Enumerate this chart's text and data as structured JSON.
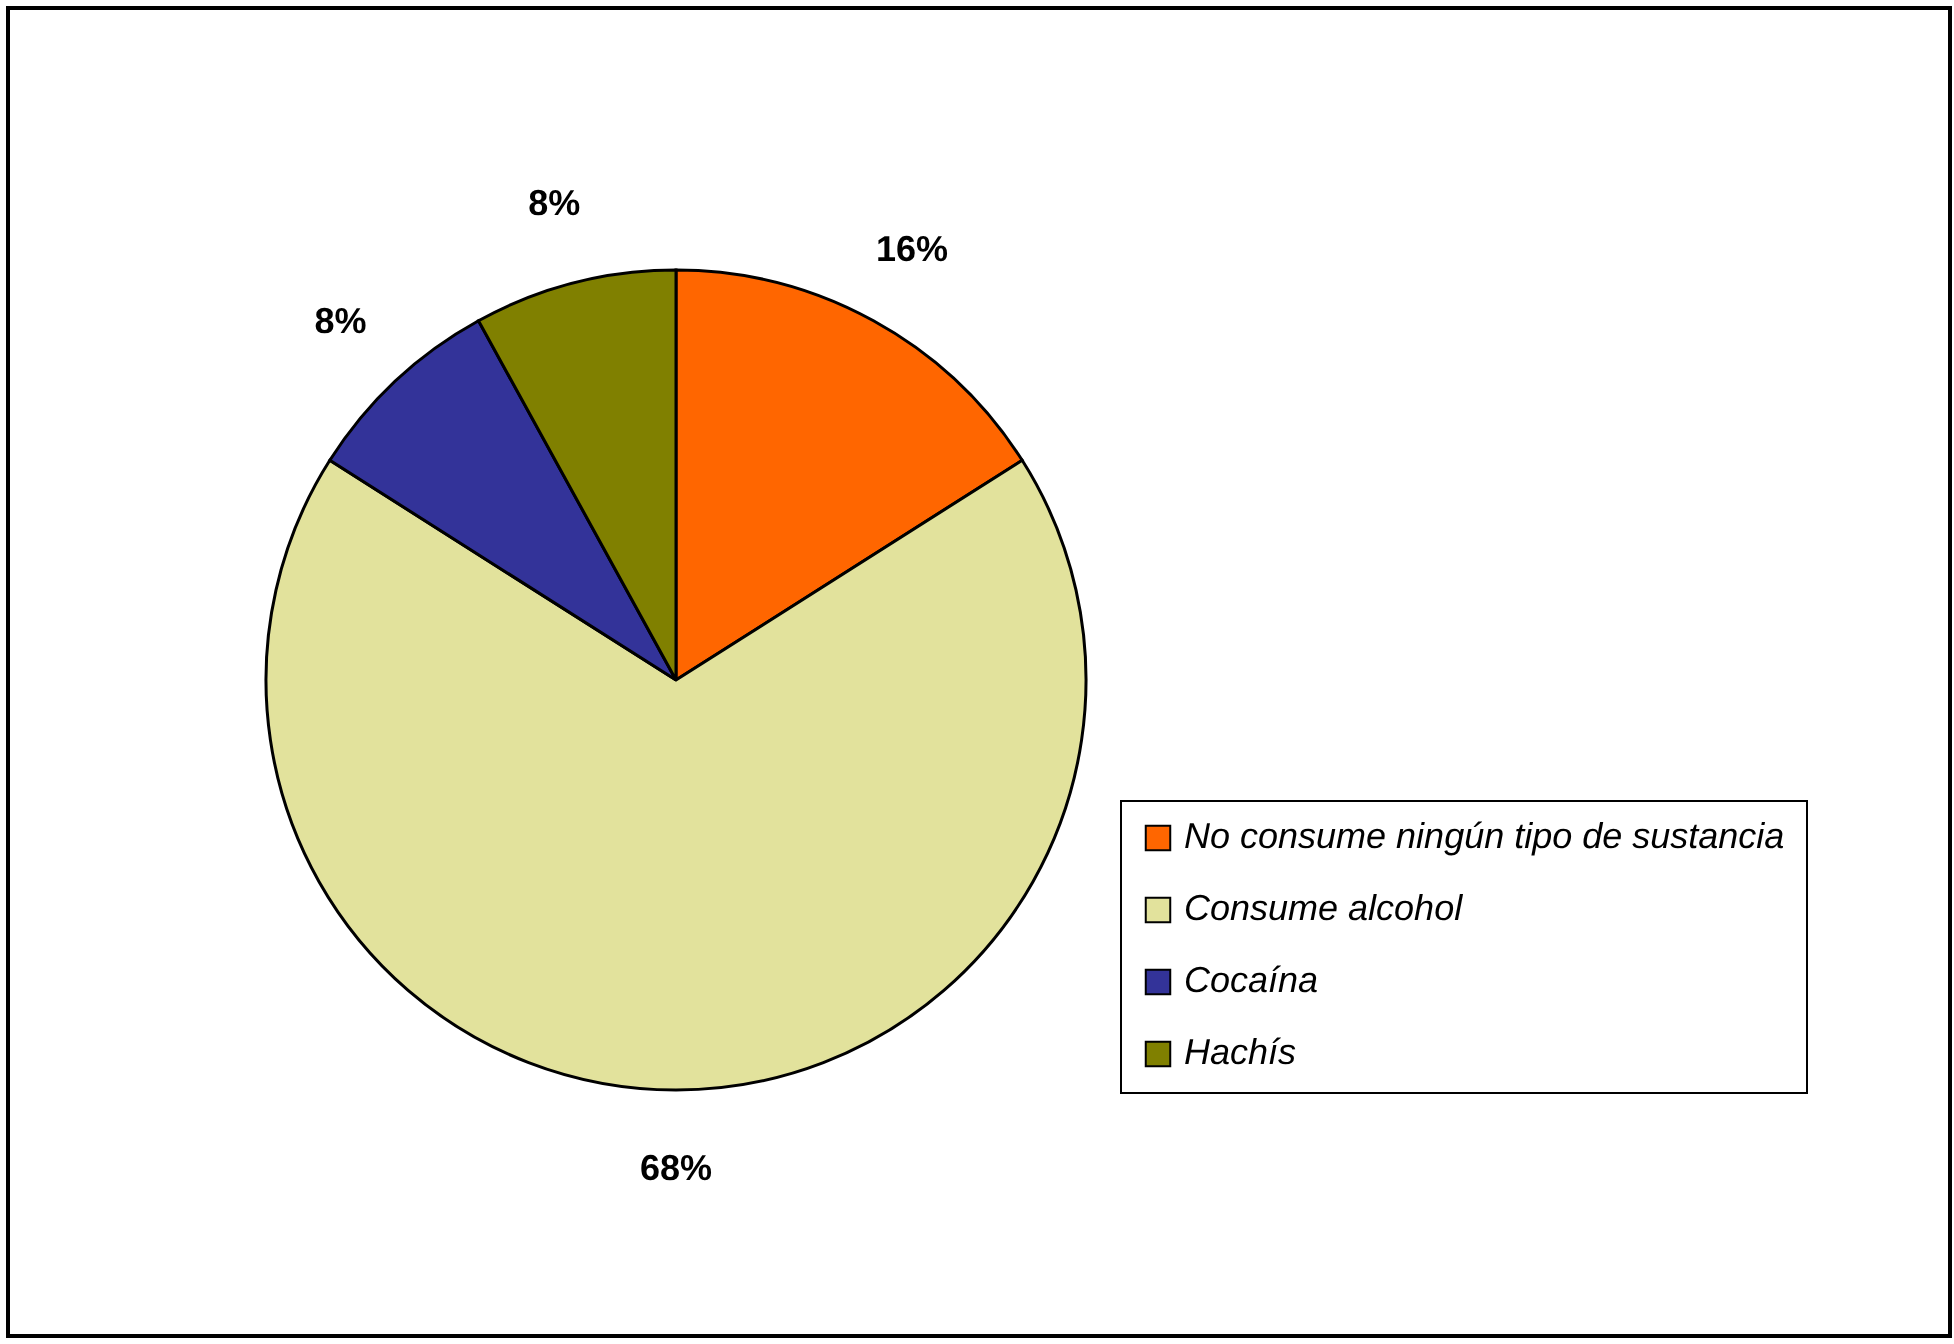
{
  "chart_data": {
    "type": "pie",
    "categories": [
      "No consume ningún tipo de sustancia",
      "Consume alcohol",
      "Cocaína",
      "Hachís"
    ],
    "values": [
      16,
      68,
      8,
      8
    ],
    "colors": [
      "#ff6600",
      "#e2e29c",
      "#333399",
      "#808000"
    ],
    "value_labels": [
      "16%",
      "68%",
      "8%",
      "8%"
    ],
    "legend": "bottom right"
  }
}
